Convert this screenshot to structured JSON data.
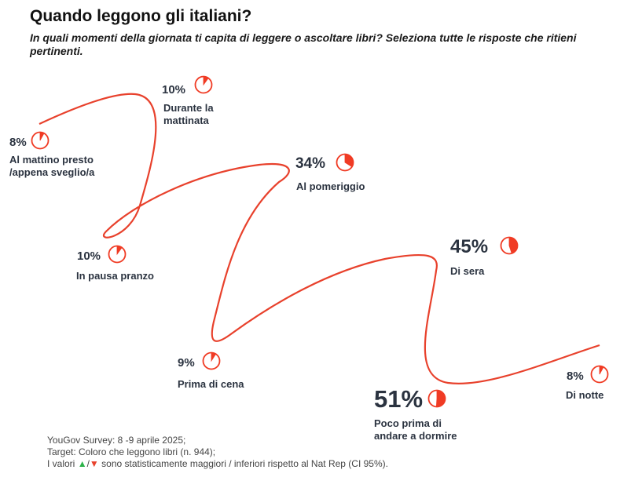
{
  "title": "Quando leggono gli italiani?",
  "subtitle": "In quali momenti della giornata ti capita di leggere o ascoltare libri? Seleziona tutte le risposte che ritieni pertinenti.",
  "chart_data": {
    "type": "pie",
    "categories": [
      "Al mattino presto /appena sveglio/a",
      "Durante la mattinata",
      "In pausa pranzo",
      "Al pomeriggio",
      "Prima di cena",
      "Di sera",
      "Poco prima di andare a dormire",
      "Di notte"
    ],
    "values": [
      8,
      10,
      10,
      34,
      9,
      45,
      51,
      8
    ],
    "labels": [
      "8%",
      "10%",
      "10%",
      "34%",
      "9%",
      "45%",
      "51%",
      "8%"
    ],
    "label_lines": [
      [
        "Al mattino presto",
        "/appena sveglio/a"
      ],
      [
        "Durante la",
        "mattinata"
      ],
      [
        "In pausa pranzo"
      ],
      [
        "Al pomeriggio"
      ],
      [
        "Prima di cena"
      ],
      [
        "Di sera"
      ],
      [
        "Poco prima di",
        "andare a dormire"
      ],
      [
        "Di notte"
      ]
    ],
    "colors": {
      "line": "#e8412c",
      "fill": "#f03b24",
      "text": "#2b3340"
    }
  },
  "footer": {
    "line1": "YouGov Survey: 8 -9 aprile 2025;",
    "line2": "Target: Coloro che leggono libri (n. 944);",
    "line3_pre": "I valori ",
    "up": "▲",
    "slash": "/",
    "down": "▼",
    "line3_post": " sono statisticamente maggiori / inferiori rispetto al Nat Rep (CI 95%)."
  }
}
